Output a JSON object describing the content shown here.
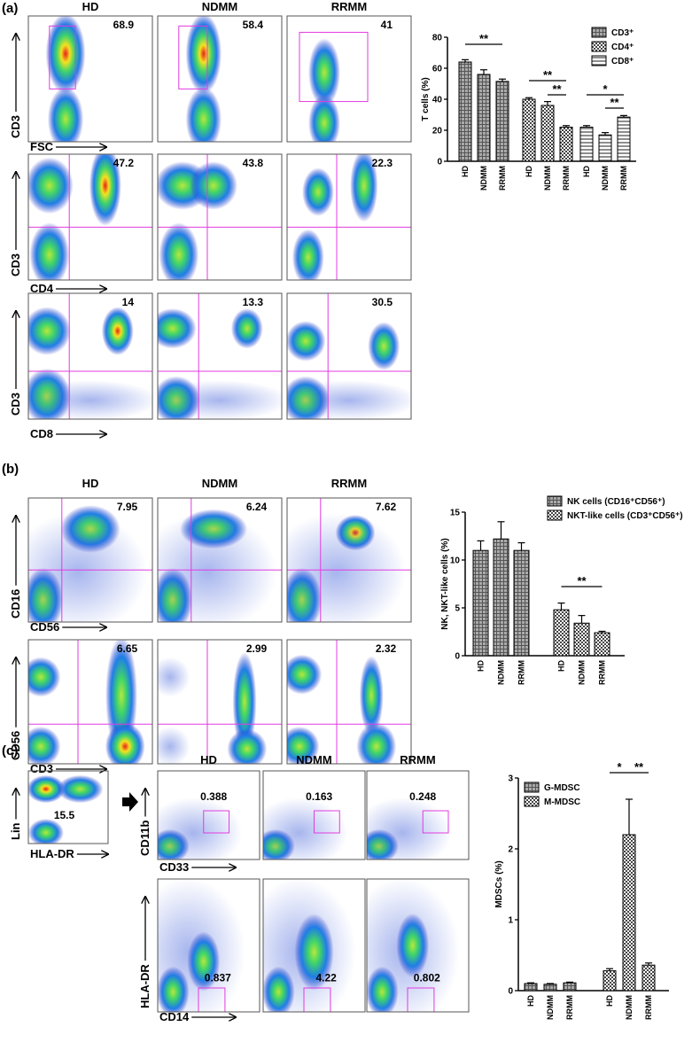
{
  "panels": [
    {
      "label": "(a)",
      "columns": [
        "HD",
        "NDMM",
        "RRMM"
      ],
      "rows": [
        {
          "y_label": "CD3",
          "x_label": "FSC",
          "gate_values": [
            68.9,
            58.4,
            41
          ]
        },
        {
          "y_label": "CD3",
          "x_label": "CD4",
          "gate_values": [
            47.2,
            43.8,
            22.3
          ]
        },
        {
          "y_label": "CD3",
          "x_label": "CD8",
          "gate_values": [
            14,
            13.3,
            30.5
          ]
        }
      ]
    },
    {
      "label": "(b)",
      "columns": [
        "HD",
        "NDMM",
        "RRMM"
      ],
      "rows": [
        {
          "y_label": "CD16",
          "x_label": "CD56",
          "gate_values": [
            7.95,
            6.24,
            7.62
          ]
        },
        {
          "y_label": "CD56",
          "x_label": "CD3",
          "gate_values": [
            6.65,
            2.99,
            2.32
          ]
        }
      ]
    },
    {
      "label": "(c)",
      "columns": [
        "HD",
        "NDMM",
        "RRMM"
      ],
      "gating": {
        "y_label": "Lin",
        "x_label": "HLA-DR",
        "gate_value": 15.5
      },
      "rows": [
        {
          "y_label": "CD11b",
          "x_label": "CD33",
          "gate_values": [
            0.388,
            0.163,
            0.248
          ]
        },
        {
          "y_label": "HLA-DR",
          "x_label": "CD14",
          "gate_values": [
            0.837,
            4.22,
            0.802
          ]
        }
      ]
    }
  ],
  "chart_data": [
    {
      "type": "bar",
      "y_label": "T cells (%)",
      "categories": [
        "HD",
        "NDMM",
        "RRMM"
      ],
      "series": [
        {
          "name": "CD3⁺",
          "pattern": "grid",
          "color": "#555555",
          "values": [
            64,
            56,
            51.5
          ],
          "errors": [
            1.5,
            3,
            1.5
          ]
        },
        {
          "name": "CD4⁺",
          "pattern": "check",
          "color": "#444444",
          "values": [
            40,
            36,
            22
          ],
          "errors": [
            1,
            2.5,
            1
          ]
        },
        {
          "name": "CD8⁺",
          "pattern": "hstripe",
          "color": "#444444",
          "values": [
            22,
            17,
            28.5
          ],
          "errors": [
            1,
            1.5,
            1
          ]
        }
      ],
      "ylim": [
        0,
        80
      ],
      "yticks": [
        0,
        20,
        40,
        60,
        80
      ],
      "annotations": [
        "**",
        "**",
        "**",
        "*",
        "**"
      ]
    },
    {
      "type": "bar",
      "y_label": "NK, NKT-like cells (%)",
      "categories": [
        "HD",
        "NDMM",
        "RRMM"
      ],
      "series": [
        {
          "name": "NK cells (CD16⁺CD56⁺)",
          "pattern": "grid",
          "color": "#555555",
          "values": [
            11,
            12.2,
            11
          ],
          "errors": [
            1,
            1.8,
            0.8
          ]
        },
        {
          "name": "NKT-like cells (CD3⁺CD56⁺)",
          "pattern": "check",
          "color": "#444444",
          "values": [
            4.8,
            3.4,
            2.4
          ],
          "errors": [
            0.7,
            0.8,
            0.15
          ]
        }
      ],
      "ylim": [
        0,
        15
      ],
      "yticks": [
        0,
        5,
        10,
        15
      ],
      "annotations": [
        "**"
      ]
    },
    {
      "type": "bar",
      "y_label": "MDSCs (%)",
      "categories": [
        "HD",
        "NDMM",
        "RRMM"
      ],
      "series": [
        {
          "name": "G-MDSC",
          "pattern": "grid",
          "color": "#555555",
          "values": [
            0.1,
            0.09,
            0.11
          ],
          "errors": [
            0.01,
            0.01,
            0.01
          ]
        },
        {
          "name": "M-MDSC",
          "pattern": "check",
          "color": "#444444",
          "values": [
            0.28,
            2.2,
            0.36
          ],
          "errors": [
            0.03,
            0.5,
            0.03
          ]
        }
      ],
      "ylim": [
        0,
        3
      ],
      "yticks": [
        0,
        1,
        2,
        3
      ],
      "annotations": [
        "*",
        "**"
      ]
    }
  ]
}
